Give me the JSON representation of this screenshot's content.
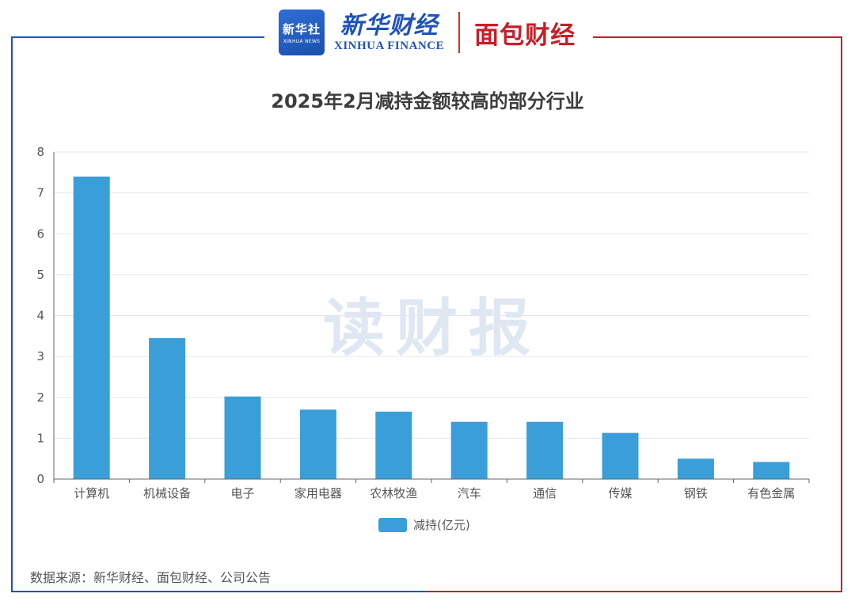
{
  "header": {
    "badge_line1": "新华社",
    "badge_line2": "XINHUA NEWS",
    "brand_cn": "新华财经",
    "brand_en": "XINHUA FINANCE",
    "partner": "面包财经"
  },
  "watermark": "读财报",
  "source_note": "数据来源：新华财经、面包财经、公司公告",
  "colors": {
    "bar": "#3a9fd8",
    "frame_left": "#1f52b8",
    "frame_right": "#c81e28"
  },
  "chart_data": {
    "type": "bar",
    "title": "2025年2月减持金额较高的部分行业",
    "categories": [
      "计算机",
      "机械设备",
      "电子",
      "家用电器",
      "农林牧渔",
      "汽车",
      "通信",
      "传媒",
      "钢铁",
      "有色金属"
    ],
    "series": [
      {
        "name": "减持(亿元)",
        "values": [
          7.4,
          3.45,
          2.02,
          1.7,
          1.65,
          1.4,
          1.4,
          1.13,
          0.5,
          0.42
        ]
      }
    ],
    "yticks": [
      0,
      1,
      2,
      3,
      4,
      5,
      6,
      7,
      8
    ],
    "ylim": [
      0,
      8
    ],
    "grid": true,
    "legend_position": "bottom-center"
  }
}
